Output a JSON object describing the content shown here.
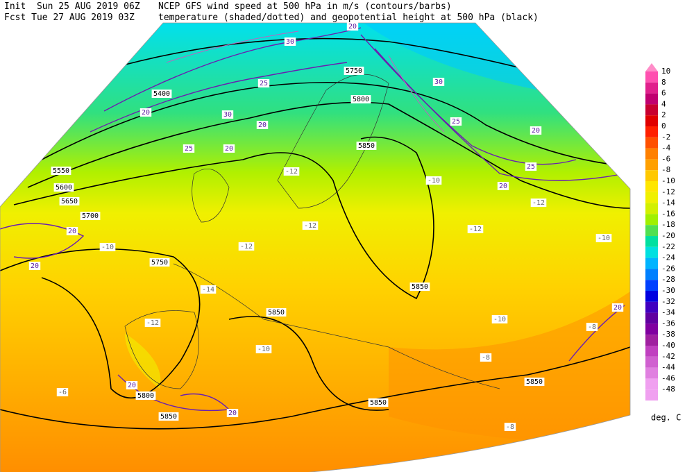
{
  "header": {
    "init": "Init  Sun 25 AUG 2019 06Z",
    "forecast": "Fcst Tue 27 AUG 2019 03Z",
    "title_line_1": "NCEP GFS wind speed at 500 hPa in m/s (contours/barbs)",
    "title_line_2": "temperature (shaded/dotted) and geopotential height at 500 hPa (black)"
  },
  "colorbar": {
    "unit": "deg. C",
    "entries": [
      {
        "label": "10",
        "color": "#ff8cc8"
      },
      {
        "label": "8",
        "color": "#ff50b0"
      },
      {
        "label": "6",
        "color": "#e0208c"
      },
      {
        "label": "4",
        "color": "#c00070"
      },
      {
        "label": "2",
        "color": "#c80030"
      },
      {
        "label": "0",
        "color": "#e00000"
      },
      {
        "label": "-2",
        "color": "#ff2000"
      },
      {
        "label": "-4",
        "color": "#ff5000"
      },
      {
        "label": "-6",
        "color": "#ff8000"
      },
      {
        "label": "-8",
        "color": "#ffa000"
      },
      {
        "label": "-10",
        "color": "#ffc800"
      },
      {
        "label": "-12",
        "color": "#ffe600"
      },
      {
        "label": "-14",
        "color": "#f0f000"
      },
      {
        "label": "-16",
        "color": "#d2f000"
      },
      {
        "label": "-18",
        "color": "#a0f000"
      },
      {
        "label": "-20",
        "color": "#50e050"
      },
      {
        "label": "-22",
        "color": "#00e0a0"
      },
      {
        "label": "-24",
        "color": "#00e0e0"
      },
      {
        "label": "-26",
        "color": "#00b4ff"
      },
      {
        "label": "-28",
        "color": "#0080ff"
      },
      {
        "label": "-30",
        "color": "#0040ff"
      },
      {
        "label": "-32",
        "color": "#0000e0"
      },
      {
        "label": "-34",
        "color": "#4000c0"
      },
      {
        "label": "-36",
        "color": "#6000a0"
      },
      {
        "label": "-38",
        "color": "#8000a0"
      },
      {
        "label": "-40",
        "color": "#a020a0"
      },
      {
        "label": "-42",
        "color": "#c040c0"
      },
      {
        "label": "-44",
        "color": "#d060d0"
      },
      {
        "label": "-46",
        "color": "#e080e0"
      },
      {
        "label": "-48",
        "color": "#f0a0f0"
      }
    ]
  },
  "height_labels": [
    "5750",
    "5800",
    "5850",
    "5700",
    "5750",
    "5850",
    "5850",
    "5850",
    "5850",
    "5850",
    "5800",
    "5400",
    "5600",
    "5550",
    "5650"
  ],
  "temperature_labels": [
    "-12",
    "-10",
    "-12",
    "-10",
    "-12",
    "-14",
    "-12",
    "-10",
    "-10",
    "-8",
    "-8",
    "-8",
    "-6",
    "-12",
    "-12",
    "-10"
  ],
  "wind_labels": [
    "20",
    "30",
    "25",
    "20",
    "30",
    "20",
    "25",
    "20",
    "25",
    "20",
    "25",
    "20",
    "30",
    "20",
    "20",
    "20",
    "20",
    "20"
  ]
}
